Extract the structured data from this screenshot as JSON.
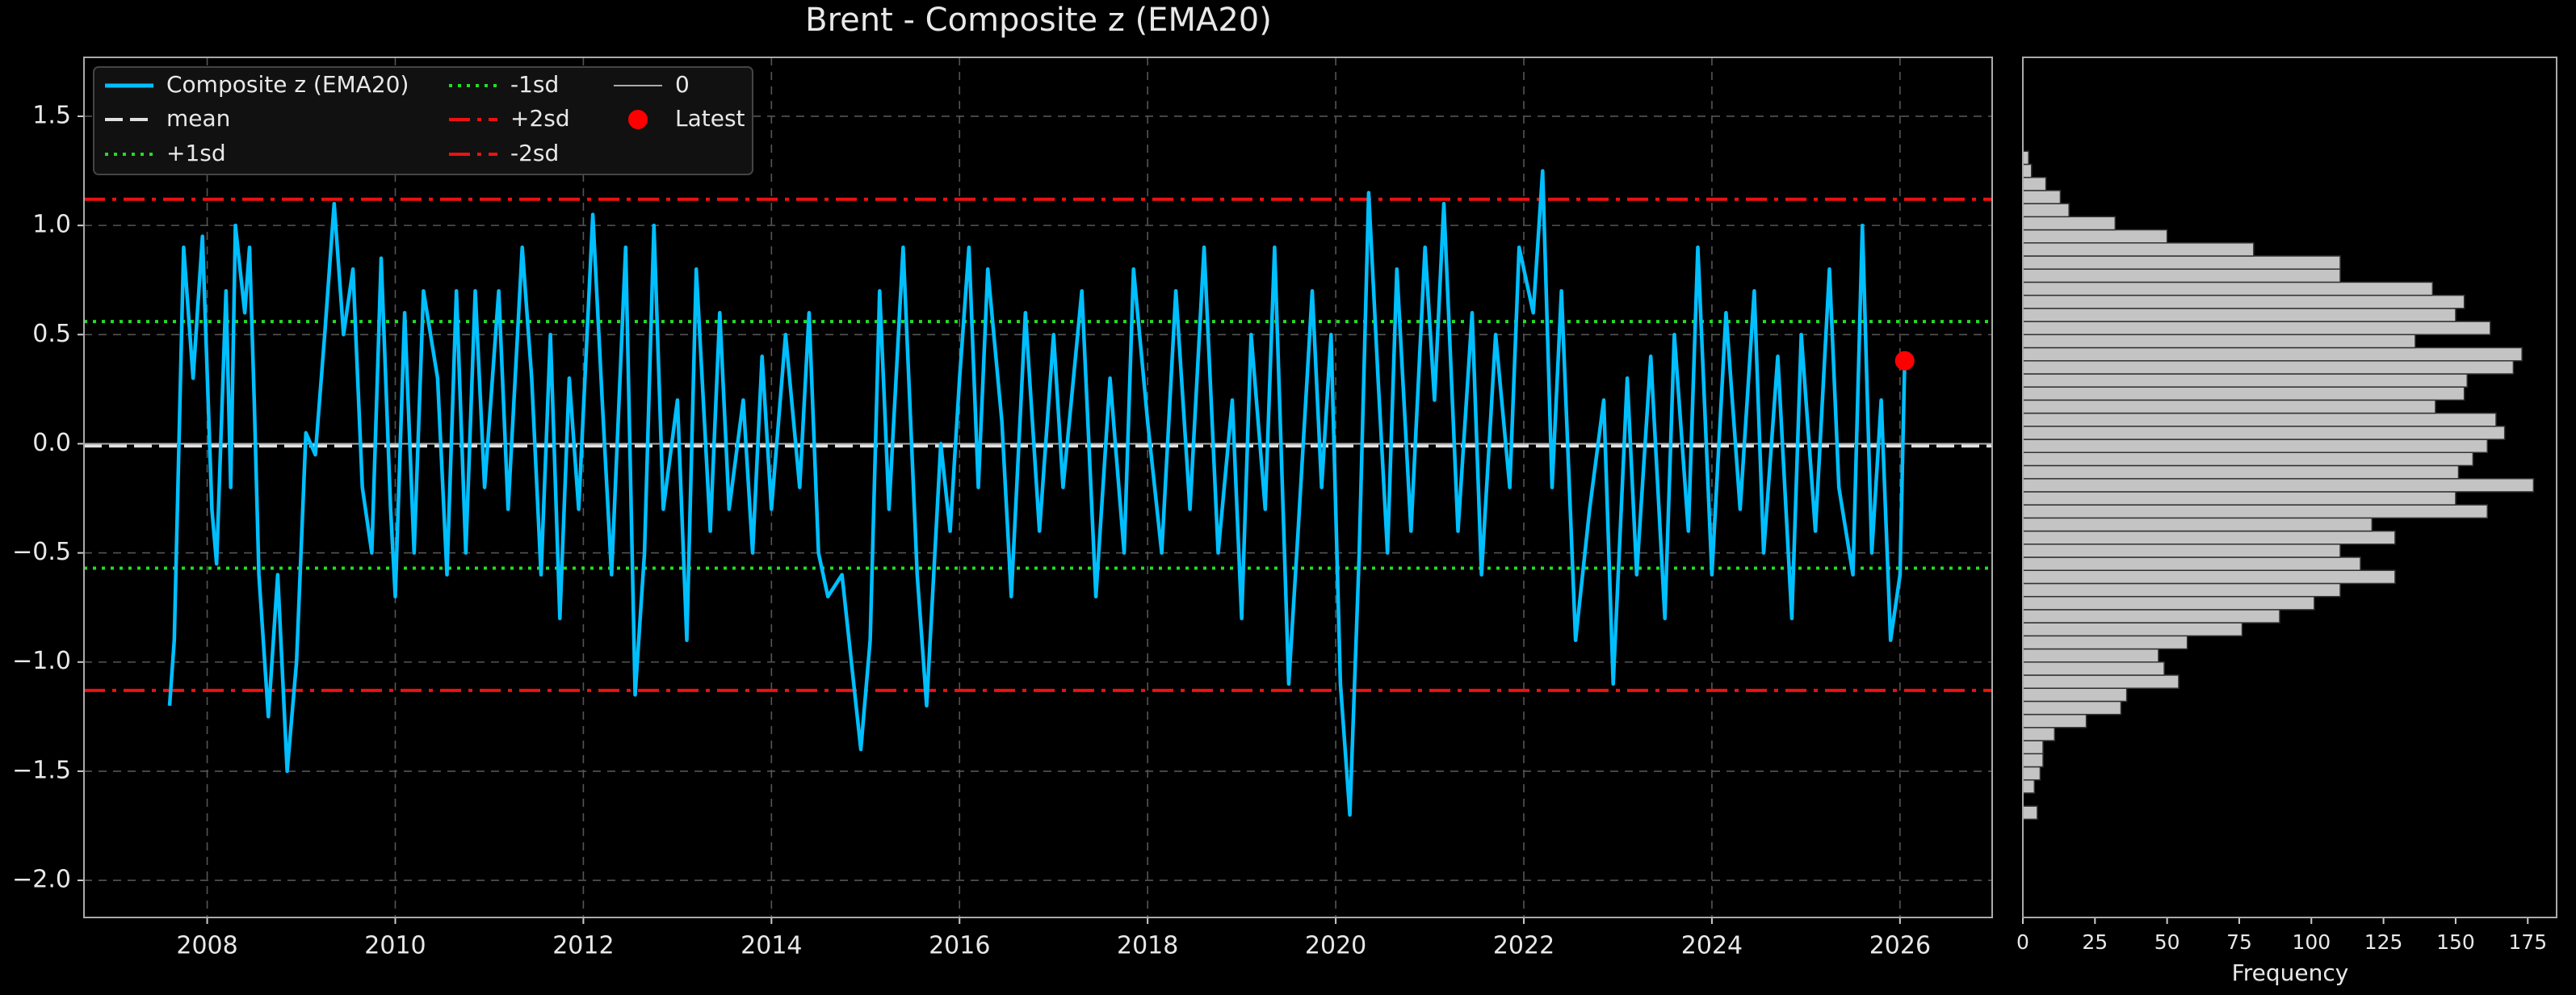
{
  "chart_data": [
    {
      "type": "line",
      "title": "Brent - Composite z (EMA20)",
      "xlim": [
        2006.69,
        2026.98
      ],
      "xticks": [
        2008,
        2010,
        2012,
        2014,
        2016,
        2018,
        2020,
        2022,
        2024,
        2026
      ],
      "ylim": [
        -2.17,
        1.77
      ],
      "yticks": [
        {
          "value": -2.0,
          "label": "−2.0"
        },
        {
          "value": -1.5,
          "label": "−1.5"
        },
        {
          "value": -1.0,
          "label": "−1.0"
        },
        {
          "value": -0.5,
          "label": "−0.5"
        },
        {
          "value": 0.0,
          "label": "0.0"
        },
        {
          "value": 0.5,
          "label": "0.5"
        },
        {
          "value": 1.0,
          "label": "1.0"
        },
        {
          "value": 1.5,
          "label": "1.5"
        }
      ],
      "grid": true,
      "legend": "upper left",
      "x": [
        2007.6,
        2007.65,
        2007.75,
        2007.85,
        2007.95,
        2008.05,
        2008.1,
        2008.2,
        2008.25,
        2008.3,
        2008.4,
        2008.45,
        2008.5,
        2008.55,
        2008.65,
        2008.75,
        2008.85,
        2008.95,
        2009.05,
        2009.15,
        2009.25,
        2009.35,
        2009.45,
        2009.55,
        2009.65,
        2009.75,
        2009.85,
        2009.95,
        2010.0,
        2010.1,
        2010.2,
        2010.3,
        2010.45,
        2010.55,
        2010.65,
        2010.75,
        2010.85,
        2010.95,
        2011.1,
        2011.2,
        2011.35,
        2011.45,
        2011.55,
        2011.65,
        2011.75,
        2011.85,
        2011.95,
        2012.1,
        2012.2,
        2012.3,
        2012.45,
        2012.55,
        2012.65,
        2012.75,
        2012.85,
        2013.0,
        2013.1,
        2013.2,
        2013.35,
        2013.45,
        2013.55,
        2013.7,
        2013.8,
        2013.9,
        2014.0,
        2014.15,
        2014.3,
        2014.4,
        2014.5,
        2014.6,
        2014.75,
        2014.85,
        2014.95,
        2015.05,
        2015.15,
        2015.25,
        2015.4,
        2015.55,
        2015.65,
        2015.8,
        2015.9,
        2016.0,
        2016.1,
        2016.2,
        2016.3,
        2016.45,
        2016.55,
        2016.7,
        2016.85,
        2017.0,
        2017.1,
        2017.3,
        2017.45,
        2017.6,
        2017.75,
        2017.85,
        2018.0,
        2018.15,
        2018.3,
        2018.45,
        2018.6,
        2018.75,
        2018.9,
        2019.0,
        2019.1,
        2019.25,
        2019.35,
        2019.5,
        2019.6,
        2019.75,
        2019.85,
        2019.95,
        2020.05,
        2020.15,
        2020.25,
        2020.35,
        2020.45,
        2020.55,
        2020.65,
        2020.8,
        2020.95,
        2021.05,
        2021.15,
        2021.3,
        2021.45,
        2021.55,
        2021.7,
        2021.85,
        2021.95,
        2022.1,
        2022.2,
        2022.3,
        2022.4,
        2022.55,
        2022.7,
        2022.85,
        2022.95,
        2023.1,
        2023.2,
        2023.35,
        2023.5,
        2023.6,
        2023.75,
        2023.85,
        2024.0,
        2024.15,
        2024.3,
        2024.45,
        2024.55,
        2024.7,
        2024.85,
        2024.95,
        2025.1,
        2025.25,
        2025.35,
        2025.5,
        2025.6,
        2025.7,
        2025.8,
        2025.9,
        2026.0,
        2026.05
      ],
      "series": [
        {
          "name": "Composite z (EMA20)",
          "color": "#00bfff",
          "values": [
            -1.2,
            -0.9,
            0.9,
            0.3,
            0.95,
            -0.3,
            -0.55,
            0.7,
            -0.2,
            1.0,
            0.6,
            0.9,
            0.2,
            -0.6,
            -1.25,
            -0.6,
            -1.5,
            -1.0,
            0.05,
            -0.05,
            0.5,
            1.1,
            0.5,
            0.8,
            -0.2,
            -0.5,
            0.85,
            -0.3,
            -0.7,
            0.6,
            -0.5,
            0.7,
            0.3,
            -0.6,
            0.7,
            -0.5,
            0.7,
            -0.2,
            0.7,
            -0.3,
            0.9,
            0.3,
            -0.6,
            0.5,
            -0.8,
            0.3,
            -0.3,
            1.05,
            0.2,
            -0.6,
            0.9,
            -1.15,
            -0.5,
            1.0,
            -0.3,
            0.2,
            -0.9,
            0.8,
            -0.4,
            0.6,
            -0.3,
            0.2,
            -0.5,
            0.4,
            -0.3,
            0.5,
            -0.2,
            0.6,
            -0.5,
            -0.7,
            -0.6,
            -1.0,
            -1.4,
            -0.9,
            0.7,
            -0.3,
            0.9,
            -0.6,
            -1.2,
            0.0,
            -0.4,
            0.3,
            0.9,
            -0.2,
            0.8,
            0.1,
            -0.7,
            0.6,
            -0.4,
            0.5,
            -0.2,
            0.7,
            -0.7,
            0.3,
            -0.5,
            0.8,
            0.1,
            -0.5,
            0.7,
            -0.3,
            0.9,
            -0.5,
            0.2,
            -0.8,
            0.5,
            -0.3,
            0.9,
            -1.1,
            -0.4,
            0.7,
            -0.2,
            0.5,
            -1.1,
            -1.7,
            -0.5,
            1.15,
            0.3,
            -0.5,
            0.8,
            -0.4,
            0.9,
            0.2,
            1.1,
            -0.4,
            0.6,
            -0.6,
            0.5,
            -0.2,
            0.9,
            0.6,
            1.25,
            -0.2,
            0.7,
            -0.9,
            -0.3,
            0.2,
            -1.1,
            0.3,
            -0.6,
            0.4,
            -0.8,
            0.5,
            -0.4,
            0.9,
            -0.6,
            0.6,
            -0.3,
            0.7,
            -0.5,
            0.4,
            -0.8,
            0.5,
            -0.4,
            0.8,
            -0.2,
            -0.6,
            1.0,
            -0.5,
            0.2,
            -0.9,
            -0.6,
            0.38
          ]
        }
      ],
      "hlines": [
        {
          "name": "mean",
          "value": -0.01,
          "color": "#e0e0e0",
          "style": "dashed"
        },
        {
          "name": "+1sd",
          "value": 0.56,
          "color": "#22dd22",
          "style": "dotted"
        },
        {
          "name": "-1sd",
          "value": -0.57,
          "color": "#22dd22",
          "style": "dotted"
        },
        {
          "name": "+2sd",
          "value": 1.12,
          "color": "#ee1111",
          "style": "dashdot"
        },
        {
          "name": "-2sd",
          "value": -1.13,
          "color": "#ee1111",
          "style": "dashdot"
        },
        {
          "name": "0",
          "value": 0,
          "color": "#aaaaaa",
          "style": "solid"
        }
      ],
      "latest": {
        "name": "Latest",
        "x": 2026.05,
        "y": 0.38,
        "color": "#ff0000"
      }
    },
    {
      "type": "histogram",
      "orientation": "horizontal",
      "xlabel": "Frequency",
      "color": "#c4c4c4",
      "xlim": [
        0,
        185
      ],
      "xticks": [
        0,
        25,
        50,
        75,
        100,
        125,
        150,
        175
      ],
      "ylim": [
        -2.17,
        1.77
      ],
      "bins": [
        -1.72,
        -1.66,
        -1.6,
        -1.54,
        -1.48,
        -1.42,
        -1.36,
        -1.3,
        -1.24,
        -1.18,
        -1.12,
        -1.06,
        -1.0,
        -0.94,
        -0.88,
        -0.82,
        -0.76,
        -0.7,
        -0.64,
        -0.58,
        -0.52,
        -0.46,
        -0.4,
        -0.34,
        -0.28,
        -0.22,
        -0.16,
        -0.1,
        -0.04,
        0.02,
        0.08,
        0.14,
        0.2,
        0.26,
        0.32,
        0.38,
        0.44,
        0.5,
        0.56,
        0.62,
        0.68,
        0.74,
        0.8,
        0.86,
        0.92,
        0.98,
        1.04,
        1.1,
        1.16,
        1.22,
        1.28,
        1.34
      ],
      "counts": [
        5,
        0,
        4,
        6,
        7,
        7,
        11,
        22,
        34,
        36,
        54,
        49,
        47,
        57,
        76,
        89,
        101,
        110,
        129,
        117,
        110,
        129,
        121,
        161,
        150,
        177,
        151,
        156,
        161,
        167,
        164,
        143,
        153,
        154,
        170,
        173,
        136,
        162,
        150,
        153,
        142,
        110,
        110,
        80,
        50,
        32,
        16,
        13,
        8,
        3,
        2
      ]
    }
  ]
}
